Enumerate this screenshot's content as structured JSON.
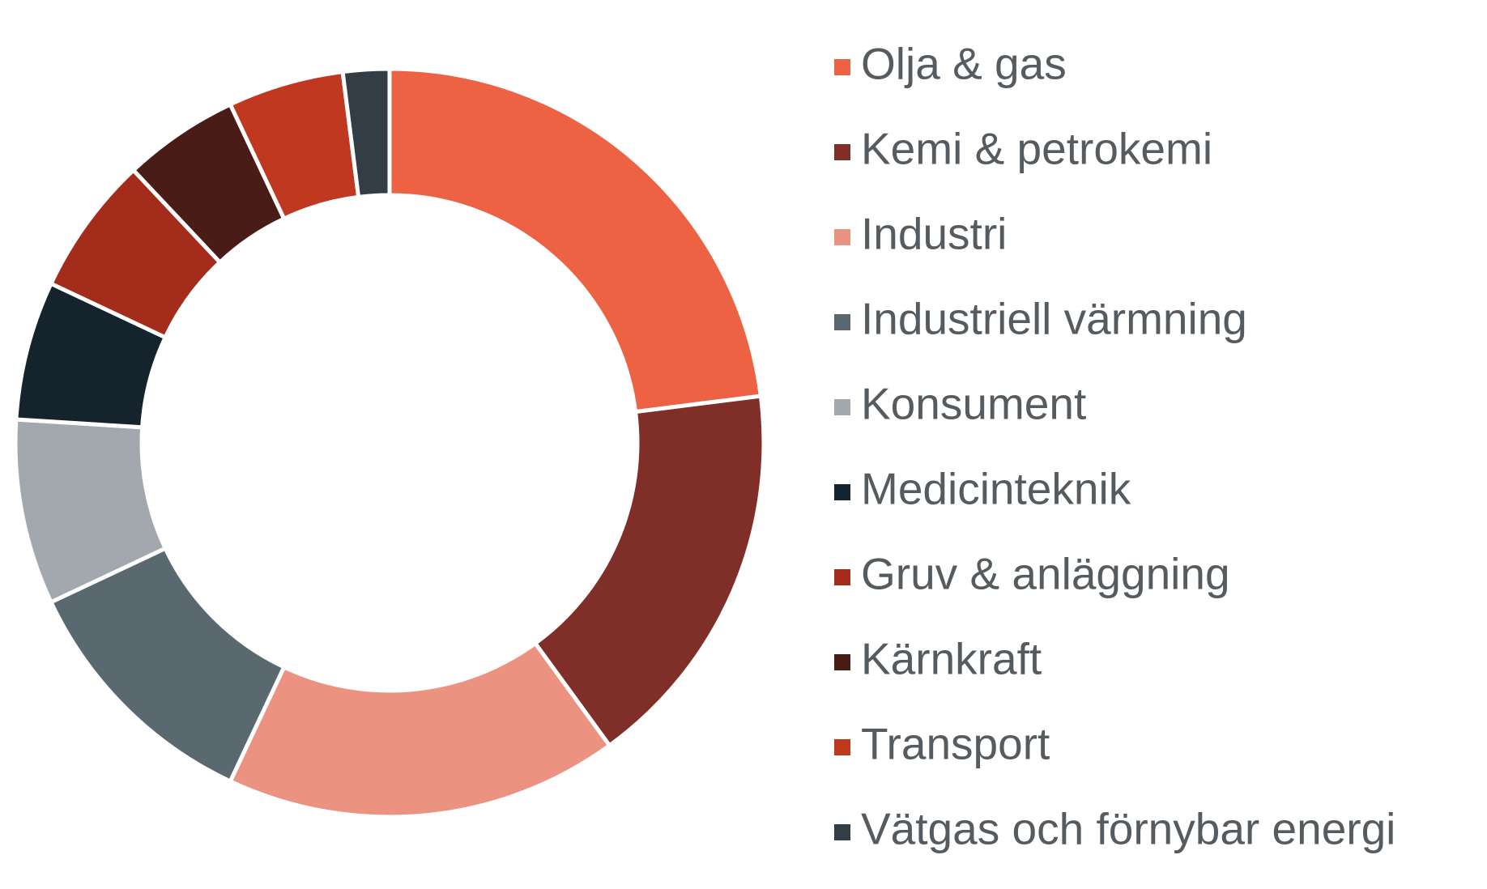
{
  "chart_data": {
    "type": "donut",
    "categories": [
      "Olja & gas",
      "Kemi & petrokemi",
      "Industri",
      "Industriell värmning",
      "Konsument",
      "Medicinteknik",
      "Gruv & anläggning",
      "Kärnkraft",
      "Transport",
      "Vätgas och förnybar energi"
    ],
    "values": [
      23,
      17,
      17,
      11,
      8,
      6,
      6,
      5,
      5,
      2
    ],
    "colors": [
      "#ec6243",
      "#7f2e28",
      "#ec9280",
      "#5a6870",
      "#a2a8ad",
      "#14232c",
      "#a32d1a",
      "#4a1c18",
      "#c13820",
      "#323d45"
    ],
    "legend": "right"
  }
}
